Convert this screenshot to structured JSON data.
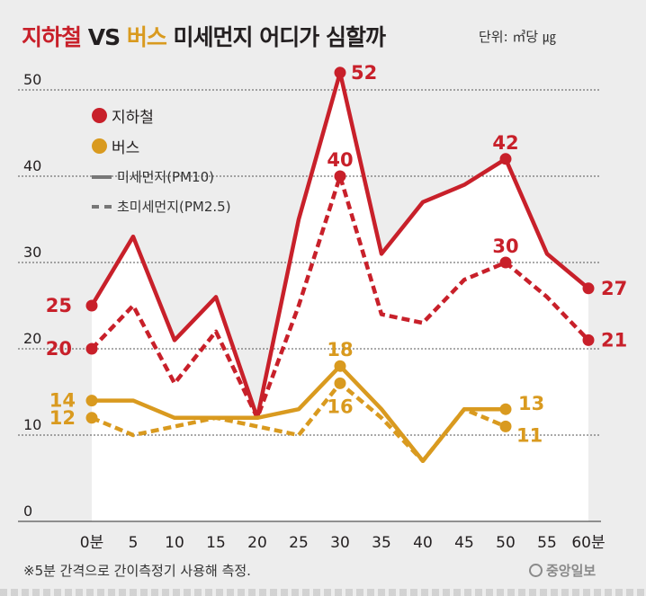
{
  "title": {
    "subway": "지하철",
    "vs": "VS",
    "bus": "버스",
    "rest": "미세먼지 어디가 심할까"
  },
  "unit_label": "단위: ㎥당 ㎍",
  "legend": {
    "subway": "지하철",
    "bus": "버스",
    "pm10": "미세먼지(PM10)",
    "pm25": "초미세먼지(PM2.5)"
  },
  "footnote": "※5분 간격으로 간이측정기 사용해 측정.",
  "source": "중앙일보",
  "colors": {
    "subway": "#c8202a",
    "bus": "#d99a1f",
    "grid": "#555555",
    "area": "#ffffff",
    "text": "#231f20"
  },
  "chart_data": {
    "type": "line",
    "title": "지하철 VS 버스 미세먼지 어디가 심할까",
    "unit": "단위: ㎥당 ㎍",
    "x": [
      0,
      5,
      10,
      15,
      20,
      25,
      30,
      35,
      40,
      45,
      50,
      55,
      60
    ],
    "x_tick_labels": [
      "0분",
      "5",
      "10",
      "15",
      "20",
      "25",
      "30",
      "35",
      "40",
      "45",
      "50",
      "55",
      "60분"
    ],
    "y_ticks": [
      0,
      10,
      20,
      30,
      40,
      50
    ],
    "ylim": [
      0,
      55
    ],
    "grid": "horizontal-dashed",
    "legend_position": "top-left",
    "series": [
      {
        "name": "지하철 미세먼지(PM10)",
        "group": "subway",
        "style": "solid",
        "x": [
          0,
          5,
          10,
          15,
          20,
          25,
          30,
          35,
          40,
          45,
          50,
          55,
          60
        ],
        "values": [
          25,
          33,
          21,
          26,
          12,
          35,
          52,
          31,
          37,
          39,
          42,
          31,
          27
        ],
        "labeled": [
          {
            "x": 0,
            "label": "25"
          },
          {
            "x": 30,
            "label": "52"
          },
          {
            "x": 50,
            "label": "42"
          },
          {
            "x": 60,
            "label": "27"
          }
        ]
      },
      {
        "name": "지하철 초미세먼지(PM2.5)",
        "group": "subway",
        "style": "dashed",
        "x": [
          0,
          5,
          10,
          15,
          20,
          25,
          30,
          35,
          40,
          45,
          50,
          55,
          60
        ],
        "values": [
          20,
          25,
          16,
          22,
          12,
          25,
          40,
          24,
          23,
          28,
          30,
          26,
          21
        ],
        "labeled": [
          {
            "x": 0,
            "label": "20"
          },
          {
            "x": 30,
            "label": "40"
          },
          {
            "x": 50,
            "label": "30"
          },
          {
            "x": 60,
            "label": "21"
          }
        ]
      },
      {
        "name": "버스 미세먼지(PM10)",
        "group": "bus",
        "style": "solid",
        "x": [
          0,
          5,
          10,
          15,
          20,
          25,
          30,
          35,
          40,
          45,
          50
        ],
        "values": [
          14,
          14,
          12,
          12,
          12,
          13,
          18,
          13,
          7,
          13,
          13
        ],
        "labeled": [
          {
            "x": 0,
            "label": "14"
          },
          {
            "x": 30,
            "label": "18"
          },
          {
            "x": 50,
            "label": "13"
          }
        ]
      },
      {
        "name": "버스 초미세먼지(PM2.5)",
        "group": "bus",
        "style": "dashed",
        "x": [
          0,
          5,
          10,
          15,
          20,
          25,
          30,
          35,
          40,
          45,
          50
        ],
        "values": [
          12,
          10,
          11,
          12,
          11,
          10,
          16,
          12,
          7,
          13,
          11
        ],
        "labeled": [
          {
            "x": 0,
            "label": "12"
          },
          {
            "x": 30,
            "label": "16"
          },
          {
            "x": 50,
            "label": "11"
          }
        ]
      }
    ]
  }
}
